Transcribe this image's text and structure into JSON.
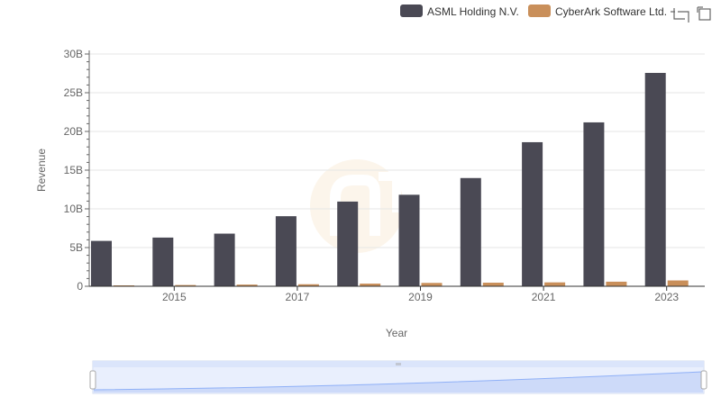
{
  "chart_data": {
    "type": "bar",
    "title": "",
    "xlabel": "Year",
    "ylabel": "Revenue",
    "categories": [
      "2014",
      "2015",
      "2016",
      "2017",
      "2018",
      "2019",
      "2020",
      "2021",
      "2022",
      "2023"
    ],
    "x_tick_labels": [
      "2015",
      "2017",
      "2019",
      "2021",
      "2023"
    ],
    "y_tick_labels": [
      "0",
      "5B",
      "10B",
      "15B",
      "20B",
      "25B",
      "30B"
    ],
    "ylim": [
      0,
      30000000000
    ],
    "series": [
      {
        "name": "ASML Holding N.V.",
        "color": "#4a4954",
        "values": [
          5860000000,
          6290000000,
          6800000000,
          9050000000,
          10940000000,
          11820000000,
          13980000000,
          18610000000,
          21170000000,
          27560000000
        ]
      },
      {
        "name": "CyberArk Software Ltd.",
        "color": "#c98f5a",
        "values": [
          103000000,
          161000000,
          217000000,
          262000000,
          343000000,
          434000000,
          464000000,
          503000000,
          592000000,
          752000000
        ]
      }
    ],
    "legend_position": "top-right"
  },
  "toolbar": {
    "icons": [
      "zoom-icon",
      "restore-icon"
    ]
  },
  "colors": {
    "grid": "#e6e6e6",
    "axis": "#333333",
    "zoom_fill": "#dbe5fb"
  }
}
